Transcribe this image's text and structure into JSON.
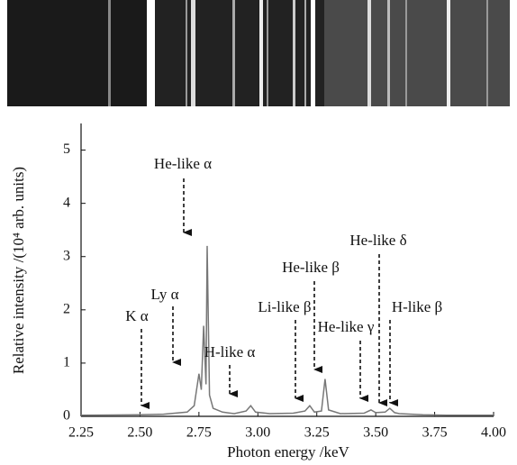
{
  "chart_data": {
    "type": "line",
    "x_label": "Photon energy /keV",
    "y_label": "Relative intensity /(10⁴ arb. units)",
    "x": [
      2.25,
      2.5,
      2.6,
      2.7,
      2.73,
      2.75,
      2.76,
      2.77,
      2.78,
      2.785,
      2.795,
      2.81,
      2.85,
      2.9,
      2.95,
      2.97,
      2.99,
      3.05,
      3.15,
      3.2,
      3.22,
      3.24,
      3.27,
      3.285,
      3.3,
      3.35,
      3.45,
      3.48,
      3.5,
      3.54,
      3.56,
      3.58,
      3.6,
      3.7,
      3.8,
      4.0
    ],
    "values": [
      0.02,
      0.03,
      0.04,
      0.08,
      0.2,
      0.8,
      0.5,
      1.7,
      0.6,
      3.2,
      0.4,
      0.15,
      0.08,
      0.05,
      0.1,
      0.2,
      0.08,
      0.05,
      0.06,
      0.1,
      0.2,
      0.08,
      0.1,
      0.7,
      0.12,
      0.05,
      0.06,
      0.12,
      0.07,
      0.08,
      0.15,
      0.07,
      0.05,
      0.03,
      0.02,
      0.02
    ],
    "color": "#777777",
    "xlim": [
      2.25,
      4.0
    ],
    "ylim": [
      0,
      5.5
    ],
    "xticks": [
      2.25,
      {
        "value": 2.5,
        "label": "2.50"
      },
      2.75,
      {
        "value": 3.0,
        "label": "3.00"
      },
      3.25,
      {
        "value": 3.5,
        "label": "3.50"
      },
      3.75,
      {
        "value": 4.0,
        "label": "4.00"
      }
    ],
    "yticks": [
      0,
      1,
      2,
      3,
      4,
      5
    ],
    "annotations": [
      "K α",
      "Ly α",
      "He-like α",
      "H-like α",
      "Li-like β",
      "He-like β",
      "He-like γ",
      "He-like δ",
      "H-like β"
    ]
  }
}
